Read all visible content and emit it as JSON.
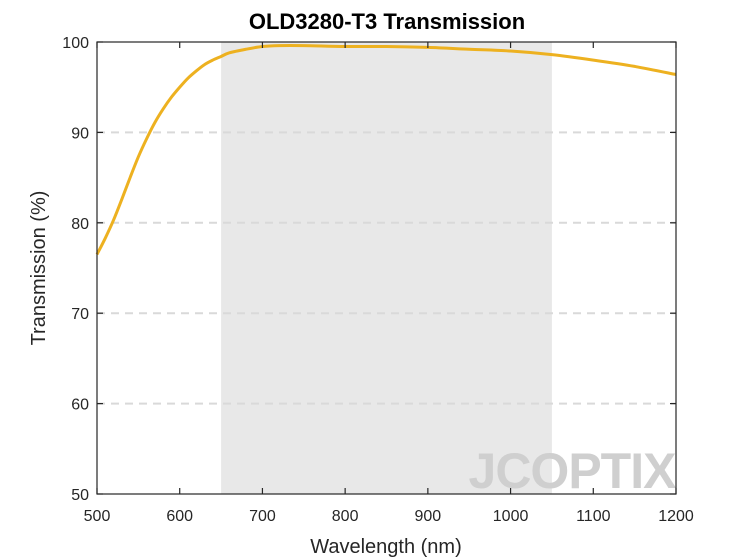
{
  "chart_data": {
    "type": "line",
    "title": "OLD3280-T3 Transmission",
    "xlabel": "Wavelength (nm)",
    "ylabel": "Transmission (%)",
    "xlim": [
      500,
      1200
    ],
    "ylim": [
      50,
      100
    ],
    "xticks": [
      500,
      600,
      700,
      800,
      900,
      1000,
      1100,
      1200
    ],
    "yticks": [
      50,
      60,
      70,
      80,
      90,
      100
    ],
    "grid": "horizontal dashed",
    "highlight_band": [
      650,
      1050
    ],
    "series": [
      {
        "color": "#EDB120",
        "x": [
          500,
          510,
          520,
          530,
          540,
          550,
          560,
          570,
          580,
          590,
          600,
          610,
          620,
          630,
          640,
          650,
          660,
          680,
          700,
          720,
          750,
          800,
          850,
          900,
          950,
          1000,
          1050,
          1100,
          1150,
          1200
        ],
        "y": [
          76.5,
          78.3,
          80.3,
          82.6,
          85.0,
          87.3,
          89.3,
          91.1,
          92.6,
          93.9,
          95.0,
          96.0,
          96.8,
          97.5,
          98.0,
          98.4,
          98.8,
          99.2,
          99.5,
          99.6,
          99.6,
          99.5,
          99.5,
          99.4,
          99.2,
          99.0,
          98.6,
          98.0,
          97.3,
          96.4
        ]
      }
    ]
  },
  "colors": {
    "line": "#EDB120",
    "band": "#E8E8E8",
    "grid": "#D9D9D9",
    "axis": "#262626"
  },
  "watermark": "JCOPTIX"
}
